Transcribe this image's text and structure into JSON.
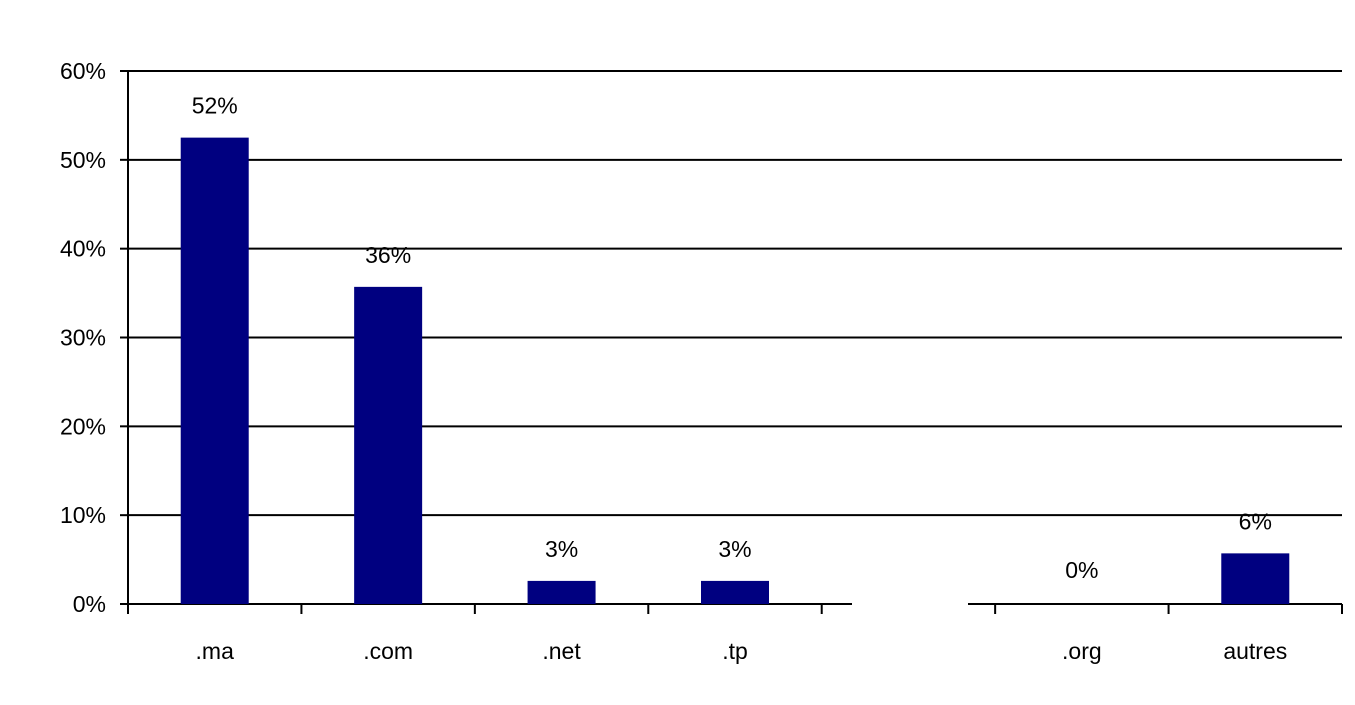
{
  "chart_data": {
    "type": "bar",
    "categories": [
      ".ma",
      ".com",
      ".net",
      ".tp",
      "",
      ".org",
      "autres"
    ],
    "values": [
      52.5,
      35.7,
      2.6,
      2.6,
      null,
      0,
      5.7
    ],
    "data_labels": [
      "52%",
      "36%",
      "3%",
      "3%",
      "",
      "0%",
      "6%"
    ],
    "ylim": [
      0,
      60
    ],
    "yticks": [
      0,
      10,
      20,
      30,
      40,
      50,
      60
    ],
    "ytick_labels": [
      "0%",
      "10%",
      "20%",
      "30%",
      "40%",
      "50%",
      "60%"
    ],
    "grid": true,
    "legend": "none",
    "bar_color": "#000080"
  }
}
